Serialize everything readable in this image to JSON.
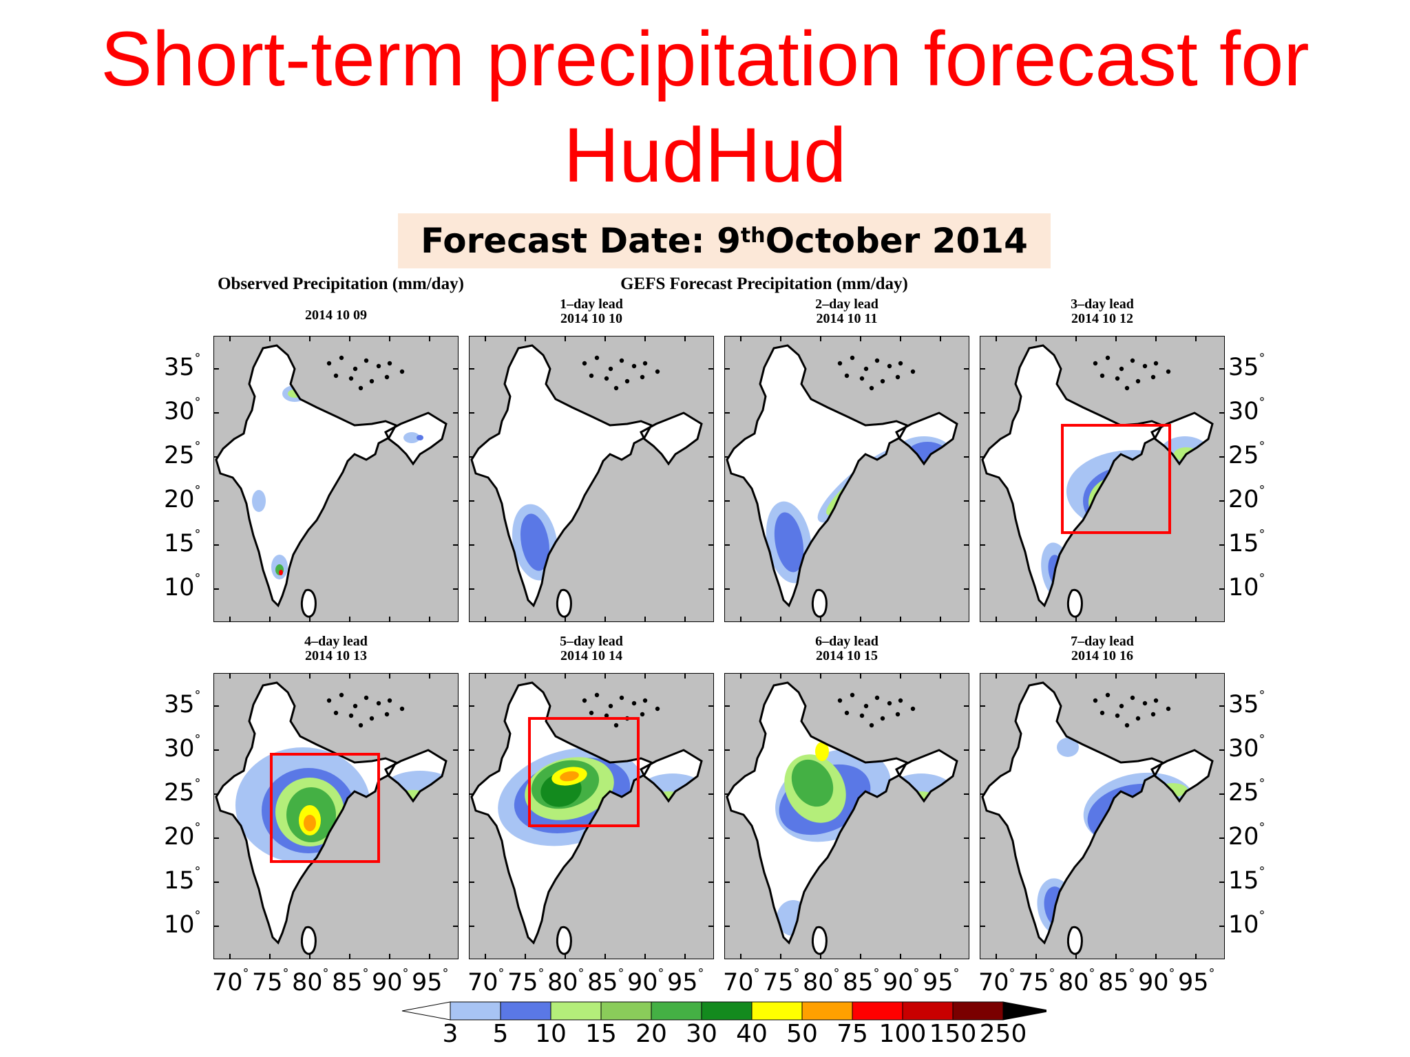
{
  "title": {
    "line1": "Short-term precipitation forecast for",
    "line2": "HudHud"
  },
  "forecast_date": {
    "prefix": "Forecast Date: 9",
    "sup": "th",
    "suffix": " October 2014"
  },
  "headers": {
    "observed": "Observed Precipitation (mm/day)",
    "forecast": "GEFS Forecast Precipitation (mm/day)"
  },
  "panels": [
    {
      "lead": "",
      "date": "2014 10 09"
    },
    {
      "lead": "1–day lead",
      "date": "2014 10 10"
    },
    {
      "lead": "2–day lead",
      "date": "2014 10 11"
    },
    {
      "lead": "3–day lead",
      "date": "2014 10 12"
    },
    {
      "lead": "4–day lead",
      "date": "2014 10 13"
    },
    {
      "lead": "5–day lead",
      "date": "2014 10 14"
    },
    {
      "lead": "6–day lead",
      "date": "2014 10 15"
    },
    {
      "lead": "7–day lead",
      "date": "2014 10 16"
    }
  ],
  "lat_ticks": [
    "35",
    "30",
    "25",
    "20",
    "15",
    "10"
  ],
  "lon_ticks": [
    "70",
    "75",
    "80",
    "85",
    "90",
    "95"
  ],
  "degree": "°",
  "colorbar": {
    "labels": [
      "3",
      "5",
      "10",
      "15",
      "20",
      "30",
      "40",
      "50",
      "75",
      "100",
      "150",
      "250"
    ],
    "colors": [
      "#a8c4f4",
      "#5a78e6",
      "#b4ee7a",
      "#8acc5a",
      "#44b044",
      "#138a1e",
      "#ffff00",
      "#ffa000",
      "#ff0000",
      "#c80000",
      "#7a0000"
    ]
  },
  "colors": {
    "title": "#ff0000",
    "map_bg": "#c0c0c0",
    "land": "#ffffff",
    "highlight_box": "#ff0000",
    "date_box_bg": "#fce8d8"
  }
}
